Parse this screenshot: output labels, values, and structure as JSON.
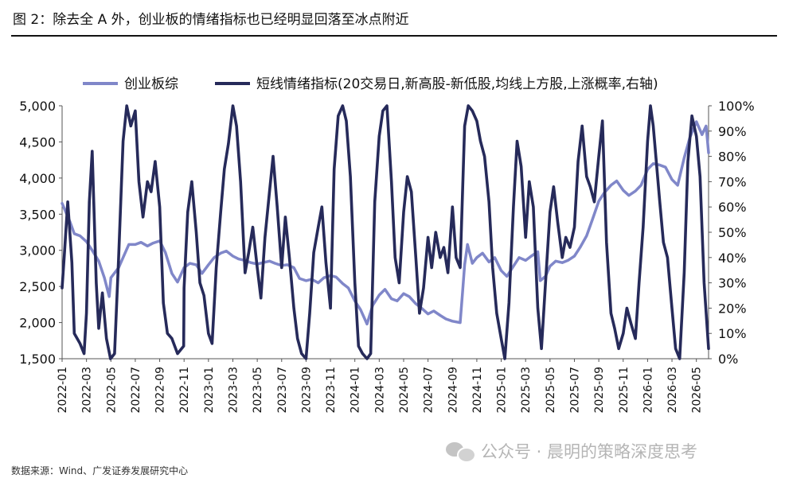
{
  "figure": {
    "title": "图 2：除去全 A 外，创业板的情绪指标也已经明显回落至冰点附近",
    "source": "数据来源：Wind、广发证券发展研究中心",
    "watermark": "公众号 · 晨明的策略深度思考",
    "watermark_icon": "wechat-icon"
  },
  "chart_data": {
    "type": "line",
    "legend_position": "top",
    "grid": false,
    "colors": {
      "创业板综": "#8087c9",
      "短线情绪指标": "#262a5a"
    },
    "x_ticks": [
      "2022-01",
      "2022-03",
      "2022-05",
      "2022-07",
      "2022-09",
      "2022-11",
      "2023-01",
      "2023-03",
      "2023-05",
      "2023-07",
      "2023-09",
      "2023-11",
      "2024-01",
      "2024-03",
      "2024-05",
      "2024-07",
      "2024-09",
      "2024-11",
      "2025-01",
      "2025-03",
      "2025-05",
      "2025-07",
      "2025-09",
      "2025-11",
      "2026-01",
      "2026-03",
      "2026-05"
    ],
    "x_range": [
      "2022-01",
      "2026-06"
    ],
    "y_left": {
      "range": [
        1500,
        5000
      ],
      "ticks": [
        "5,000",
        "4,500",
        "4,000",
        "3,500",
        "3,000",
        "2,500",
        "2,000",
        "1,500"
      ]
    },
    "y_right": {
      "range": [
        0,
        100
      ],
      "unit": "%",
      "ticks": [
        "100%",
        "90%",
        "80%",
        "70%",
        "60%",
        "50%",
        "40%",
        "30%",
        "20%",
        "10%",
        "0%"
      ]
    },
    "series": [
      {
        "name": "创业板综",
        "axis": "left",
        "points": [
          [
            "2022-01",
            3650
          ],
          [
            "2022-01-20",
            3400
          ],
          [
            "2022-02",
            3230
          ],
          [
            "2022-02-15",
            3200
          ],
          [
            "2022-03",
            3120
          ],
          [
            "2022-03-15",
            3000
          ],
          [
            "2022-04",
            2850
          ],
          [
            "2022-04-15",
            2620
          ],
          [
            "2022-04-27",
            2360
          ],
          [
            "2022-05",
            2620
          ],
          [
            "2022-05-20",
            2760
          ],
          [
            "2022-06",
            2900
          ],
          [
            "2022-06-15",
            3080
          ],
          [
            "2022-07",
            3080
          ],
          [
            "2022-07-15",
            3110
          ],
          [
            "2022-08",
            3060
          ],
          [
            "2022-08-15",
            3100
          ],
          [
            "2022-09",
            3130
          ],
          [
            "2022-09-15",
            2970
          ],
          [
            "2022-10",
            2680
          ],
          [
            "2022-10-15",
            2560
          ],
          [
            "2022-11",
            2760
          ],
          [
            "2022-11-15",
            2820
          ],
          [
            "2022-12",
            2800
          ],
          [
            "2022-12-15",
            2680
          ],
          [
            "2023-01",
            2800
          ],
          [
            "2023-01-15",
            2900
          ],
          [
            "2023-02",
            2960
          ],
          [
            "2023-02-15",
            2990
          ],
          [
            "2023-03",
            2920
          ],
          [
            "2023-03-15",
            2880
          ],
          [
            "2023-04",
            2860
          ],
          [
            "2023-04-15",
            2830
          ],
          [
            "2023-05",
            2810
          ],
          [
            "2023-05-15",
            2830
          ],
          [
            "2023-06",
            2850
          ],
          [
            "2023-06-15",
            2820
          ],
          [
            "2023-07",
            2790
          ],
          [
            "2023-07-15",
            2800
          ],
          [
            "2023-08",
            2760
          ],
          [
            "2023-08-15",
            2610
          ],
          [
            "2023-09",
            2580
          ],
          [
            "2023-09-15",
            2600
          ],
          [
            "2023-10",
            2550
          ],
          [
            "2023-10-15",
            2620
          ],
          [
            "2023-11",
            2650
          ],
          [
            "2023-11-15",
            2630
          ],
          [
            "2023-12",
            2540
          ],
          [
            "2023-12-15",
            2480
          ],
          [
            "2024-01",
            2300
          ],
          [
            "2024-01-15",
            2180
          ],
          [
            "2024-02",
            1980
          ],
          [
            "2024-02-15",
            2240
          ],
          [
            "2024-03",
            2380
          ],
          [
            "2024-03-15",
            2460
          ],
          [
            "2024-04",
            2330
          ],
          [
            "2024-04-15",
            2300
          ],
          [
            "2024-05",
            2400
          ],
          [
            "2024-05-15",
            2360
          ],
          [
            "2024-06",
            2260
          ],
          [
            "2024-06-15",
            2200
          ],
          [
            "2024-07",
            2120
          ],
          [
            "2024-07-15",
            2160
          ],
          [
            "2024-08",
            2100
          ],
          [
            "2024-08-15",
            2050
          ],
          [
            "2024-09",
            2020
          ],
          [
            "2024-09-20",
            2000
          ],
          [
            "2024-09-26",
            2420
          ],
          [
            "2024-10",
            2800
          ],
          [
            "2024-10-08",
            3080
          ],
          [
            "2024-10-20",
            2820
          ],
          [
            "2024-11",
            2900
          ],
          [
            "2024-11-15",
            2960
          ],
          [
            "2024-12",
            2840
          ],
          [
            "2024-12-15",
            2900
          ],
          [
            "2025-01",
            2720
          ],
          [
            "2025-01-15",
            2640
          ],
          [
            "2025-02",
            2780
          ],
          [
            "2025-02-15",
            2900
          ],
          [
            "2025-03",
            2860
          ],
          [
            "2025-03-15",
            2920
          ],
          [
            "2025-04",
            2980
          ],
          [
            "2025-04-07",
            2580
          ],
          [
            "2025-04-20",
            2640
          ],
          [
            "2025-05",
            2780
          ],
          [
            "2025-05-15",
            2850
          ],
          [
            "2025-06",
            2830
          ],
          [
            "2025-06-15",
            2860
          ],
          [
            "2025-07",
            2920
          ],
          [
            "2025-07-15",
            3040
          ],
          [
            "2025-08",
            3200
          ],
          [
            "2025-08-15",
            3420
          ],
          [
            "2025-09",
            3680
          ],
          [
            "2025-09-15",
            3800
          ],
          [
            "2025-10",
            3900
          ],
          [
            "2025-10-15",
            3960
          ],
          [
            "2025-11",
            3830
          ],
          [
            "2025-11-15",
            3760
          ],
          [
            "2025-12",
            3820
          ],
          [
            "2025-12-15",
            3900
          ],
          [
            "2026-01",
            4120
          ],
          [
            "2026-01-15",
            4200
          ],
          [
            "2026-02",
            4180
          ],
          [
            "2026-02-15",
            4150
          ],
          [
            "2026-03",
            3980
          ],
          [
            "2026-03-15",
            3900
          ],
          [
            "2026-04",
            4280
          ],
          [
            "2026-04-15",
            4560
          ],
          [
            "2026-05",
            4780
          ],
          [
            "2026-05-15",
            4600
          ],
          [
            "2026-05-25",
            4720
          ],
          [
            "2026-06",
            4350
          ]
        ]
      },
      {
        "name": "短线情绪指标(20交易日,新高股-新低股,均线上方股,上涨概率,右轴)",
        "axis": "right",
        "points": [
          [
            "2022-01",
            28
          ],
          [
            "2022-01-06",
            40
          ],
          [
            "2022-01-15",
            62
          ],
          [
            "2022-01-25",
            38
          ],
          [
            "2022-02",
            10
          ],
          [
            "2022-02-15",
            6
          ],
          [
            "2022-02-25",
            2
          ],
          [
            "2022-03",
            18
          ],
          [
            "2022-03-08",
            62
          ],
          [
            "2022-03-15",
            82
          ],
          [
            "2022-03-25",
            30
          ],
          [
            "2022-04",
            12
          ],
          [
            "2022-04-10",
            26
          ],
          [
            "2022-04-20",
            8
          ],
          [
            "2022-04-30",
            0
          ],
          [
            "2022-05-10",
            2
          ],
          [
            "2022-05-20",
            40
          ],
          [
            "2022-06",
            86
          ],
          [
            "2022-06-10",
            100
          ],
          [
            "2022-06-20",
            92
          ],
          [
            "2022-07",
            98
          ],
          [
            "2022-07-10",
            70
          ],
          [
            "2022-07-20",
            56
          ],
          [
            "2022-08",
            70
          ],
          [
            "2022-08-10",
            66
          ],
          [
            "2022-08-20",
            78
          ],
          [
            "2022-09",
            60
          ],
          [
            "2022-09-10",
            22
          ],
          [
            "2022-09-20",
            10
          ],
          [
            "2022-10",
            8
          ],
          [
            "2022-10-15",
            2
          ],
          [
            "2022-10-30",
            5
          ],
          [
            "2022-11",
            28
          ],
          [
            "2022-11-10",
            58
          ],
          [
            "2022-11-20",
            70
          ],
          [
            "2022-12",
            50
          ],
          [
            "2022-12-10",
            30
          ],
          [
            "2022-12-20",
            25
          ],
          [
            "2023-01",
            10
          ],
          [
            "2023-01-10",
            6
          ],
          [
            "2023-01-20",
            36
          ],
          [
            "2023-02",
            58
          ],
          [
            "2023-02-10",
            75
          ],
          [
            "2023-02-20",
            85
          ],
          [
            "2023-03",
            100
          ],
          [
            "2023-03-10",
            92
          ],
          [
            "2023-03-20",
            70
          ],
          [
            "2023-04",
            34
          ],
          [
            "2023-04-10",
            42
          ],
          [
            "2023-04-20",
            52
          ],
          [
            "2023-05",
            36
          ],
          [
            "2023-05-10",
            24
          ],
          [
            "2023-05-20",
            48
          ],
          [
            "2023-06",
            66
          ],
          [
            "2023-06-10",
            80
          ],
          [
            "2023-06-20",
            60
          ],
          [
            "2023-07",
            36
          ],
          [
            "2023-07-10",
            56
          ],
          [
            "2023-07-20",
            40
          ],
          [
            "2023-08",
            20
          ],
          [
            "2023-08-10",
            8
          ],
          [
            "2023-08-20",
            2
          ],
          [
            "2023-09",
            0
          ],
          [
            "2023-09-10",
            18
          ],
          [
            "2023-09-20",
            42
          ],
          [
            "2023-10",
            52
          ],
          [
            "2023-10-10",
            60
          ],
          [
            "2023-10-20",
            38
          ],
          [
            "2023-11",
            20
          ],
          [
            "2023-11-10",
            75
          ],
          [
            "2023-11-20",
            96
          ],
          [
            "2023-12",
            100
          ],
          [
            "2023-12-10",
            94
          ],
          [
            "2023-12-20",
            72
          ],
          [
            "2024-01",
            30
          ],
          [
            "2024-01-10",
            5
          ],
          [
            "2024-01-20",
            2
          ],
          [
            "2024-02",
            0
          ],
          [
            "2024-02-10",
            2
          ],
          [
            "2024-02-20",
            62
          ],
          [
            "2024-03",
            88
          ],
          [
            "2024-03-10",
            98
          ],
          [
            "2024-03-20",
            100
          ],
          [
            "2024-04",
            70
          ],
          [
            "2024-04-10",
            40
          ],
          [
            "2024-04-20",
            30
          ],
          [
            "2024-05",
            58
          ],
          [
            "2024-05-10",
            72
          ],
          [
            "2024-05-20",
            66
          ],
          [
            "2024-06",
            40
          ],
          [
            "2024-06-10",
            18
          ],
          [
            "2024-06-20",
            28
          ],
          [
            "2024-07",
            48
          ],
          [
            "2024-07-10",
            36
          ],
          [
            "2024-07-20",
            50
          ],
          [
            "2024-08",
            40
          ],
          [
            "2024-08-10",
            44
          ],
          [
            "2024-08-20",
            34
          ],
          [
            "2024-09",
            60
          ],
          [
            "2024-09-10",
            40
          ],
          [
            "2024-09-20",
            36
          ],
          [
            "2024-10",
            92
          ],
          [
            "2024-10-10",
            100
          ],
          [
            "2024-10-20",
            98
          ],
          [
            "2024-11",
            94
          ],
          [
            "2024-11-10",
            86
          ],
          [
            "2024-11-20",
            80
          ],
          [
            "2024-12",
            62
          ],
          [
            "2024-12-10",
            36
          ],
          [
            "2024-12-20",
            18
          ],
          [
            "2025-01",
            8
          ],
          [
            "2025-01-10",
            0
          ],
          [
            "2025-01-20",
            22
          ],
          [
            "2025-02",
            60
          ],
          [
            "2025-02-10",
            86
          ],
          [
            "2025-02-20",
            76
          ],
          [
            "2025-03",
            48
          ],
          [
            "2025-03-10",
            70
          ],
          [
            "2025-03-20",
            60
          ],
          [
            "2025-04",
            20
          ],
          [
            "2025-04-10",
            4
          ],
          [
            "2025-04-20",
            30
          ],
          [
            "2025-05",
            58
          ],
          [
            "2025-05-10",
            68
          ],
          [
            "2025-05-20",
            54
          ],
          [
            "2025-06",
            40
          ],
          [
            "2025-06-10",
            48
          ],
          [
            "2025-06-20",
            44
          ],
          [
            "2025-07",
            52
          ],
          [
            "2025-07-10",
            78
          ],
          [
            "2025-07-20",
            92
          ],
          [
            "2025-08",
            72
          ],
          [
            "2025-08-10",
            68
          ],
          [
            "2025-08-20",
            62
          ],
          [
            "2025-09",
            80
          ],
          [
            "2025-09-10",
            94
          ],
          [
            "2025-09-20",
            46
          ],
          [
            "2025-10",
            18
          ],
          [
            "2025-10-10",
            12
          ],
          [
            "2025-10-20",
            4
          ],
          [
            "2025-11",
            10
          ],
          [
            "2025-11-10",
            20
          ],
          [
            "2025-11-20",
            14
          ],
          [
            "2025-12",
            8
          ],
          [
            "2025-12-10",
            30
          ],
          [
            "2025-12-20",
            52
          ],
          [
            "2026-01",
            86
          ],
          [
            "2026-01-08",
            100
          ],
          [
            "2026-01-15",
            92
          ],
          [
            "2026-02",
            62
          ],
          [
            "2026-02-10",
            46
          ],
          [
            "2026-02-20",
            40
          ],
          [
            "2026-03",
            20
          ],
          [
            "2026-03-10",
            4
          ],
          [
            "2026-03-20",
            0
          ],
          [
            "2026-04",
            34
          ],
          [
            "2026-04-10",
            78
          ],
          [
            "2026-04-20",
            96
          ],
          [
            "2026-05",
            88
          ],
          [
            "2026-05-10",
            72
          ],
          [
            "2026-05-20",
            30
          ],
          [
            "2026-06",
            4
          ]
        ]
      }
    ]
  }
}
